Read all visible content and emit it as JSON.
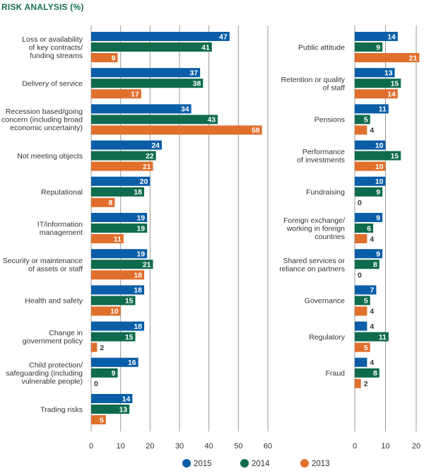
{
  "title": "RISK ANALYSIS (%)",
  "colors": {
    "2015": "#0a5ea8",
    "2014": "#0f6b4d",
    "2013": "#e06f2c",
    "grid": "#999999"
  },
  "chart_data": [
    {
      "type": "bar",
      "orientation": "horizontal",
      "title": "RISK ANALYSIS (%)",
      "xlim": [
        0,
        60
      ],
      "xticks": [
        0,
        10,
        20,
        30,
        40,
        50,
        60
      ],
      "categories": [
        [
          "Loss or availability",
          "of key contracts/",
          "funding streams"
        ],
        [
          "Delivery of service"
        ],
        [
          "Recession based/going",
          "concern (including broad",
          "economic uncertainty)"
        ],
        [
          "Not meeting objects"
        ],
        [
          "Reputational"
        ],
        [
          "IT/information",
          "management"
        ],
        [
          "Security or maintenance",
          "of assets or staff"
        ],
        [
          "Health and safety"
        ],
        [
          "Change in",
          "government policy"
        ],
        [
          "Child protection/",
          "safeguarding (including",
          "vulnerable people)"
        ],
        [
          "Trading risks"
        ]
      ],
      "series": [
        {
          "name": "2015",
          "values": [
            47,
            37,
            34,
            24,
            20,
            19,
            19,
            18,
            18,
            16,
            14
          ]
        },
        {
          "name": "2014",
          "values": [
            41,
            38,
            43,
            22,
            18,
            19,
            21,
            15,
            15,
            9,
            13
          ]
        },
        {
          "name": "2013",
          "values": [
            9,
            17,
            58,
            21,
            8,
            11,
            18,
            10,
            2,
            0,
            5
          ]
        }
      ]
    },
    {
      "type": "bar",
      "orientation": "horizontal",
      "xlim": [
        0,
        20
      ],
      "xticks": [
        0,
        10,
        20
      ],
      "categories": [
        [
          "Public attitude"
        ],
        [
          "Retention or quality",
          "of staff"
        ],
        [
          "Pensions"
        ],
        [
          "Performance",
          "of investments"
        ],
        [
          "Fundraising"
        ],
        [
          "Foreign exchange/",
          "working in foreign",
          "countries"
        ],
        [
          "Shared services or",
          "reliance on partners"
        ],
        [
          "Governance"
        ],
        [
          "Regulatory"
        ],
        [
          "Fraud"
        ]
      ],
      "series": [
        {
          "name": "2015",
          "values": [
            14,
            13,
            11,
            10,
            10,
            9,
            9,
            7,
            4,
            4
          ]
        },
        {
          "name": "2014",
          "values": [
            9,
            15,
            5,
            15,
            9,
            6,
            8,
            5,
            11,
            8
          ]
        },
        {
          "name": "2013",
          "values": [
            21,
            14,
            4,
            10,
            0,
            4,
            0,
            4,
            5,
            2
          ]
        }
      ]
    }
  ],
  "legend": [
    "2015",
    "2014",
    "2013"
  ]
}
